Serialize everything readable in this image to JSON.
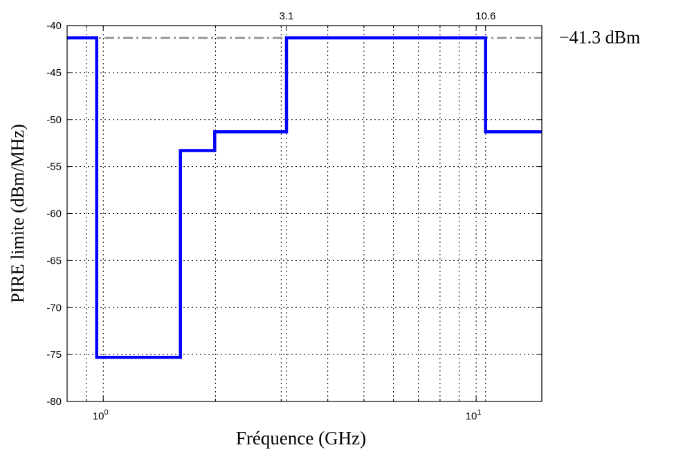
{
  "chart_data": {
    "type": "line",
    "title": "",
    "xlabel": "Fréquence (GHz)",
    "ylabel": "PIRE limite (dBm/MHz)",
    "xscale": "log",
    "xlim": [
      0.8,
      15
    ],
    "ylim": [
      -80,
      -40
    ],
    "grid": true,
    "x_ticks": [
      {
        "value": 1,
        "base": "10",
        "exp": "0"
      },
      {
        "value": 10,
        "base": "10",
        "exp": "1"
      }
    ],
    "y_ticks": [
      -40,
      -45,
      -50,
      -55,
      -60,
      -65,
      -70,
      -75,
      -80
    ],
    "top_labels": [
      {
        "value": 3.1,
        "label": "3.1"
      },
      {
        "value": 10.6,
        "label": "10.6"
      }
    ],
    "reference": {
      "y": -41.3,
      "label": "−41.3 dBm",
      "color": "#999999"
    },
    "series": [
      {
        "color": "#0000ff",
        "x": [
          0.8,
          0.96,
          0.96,
          1.61,
          1.61,
          1.99,
          1.99,
          3.1,
          3.1,
          10.6,
          10.6,
          15
        ],
        "y": [
          -41.3,
          -41.3,
          -75.3,
          -75.3,
          -53.3,
          -53.3,
          -51.3,
          -51.3,
          -41.3,
          -41.3,
          -51.3,
          -51.3
        ]
      }
    ]
  }
}
